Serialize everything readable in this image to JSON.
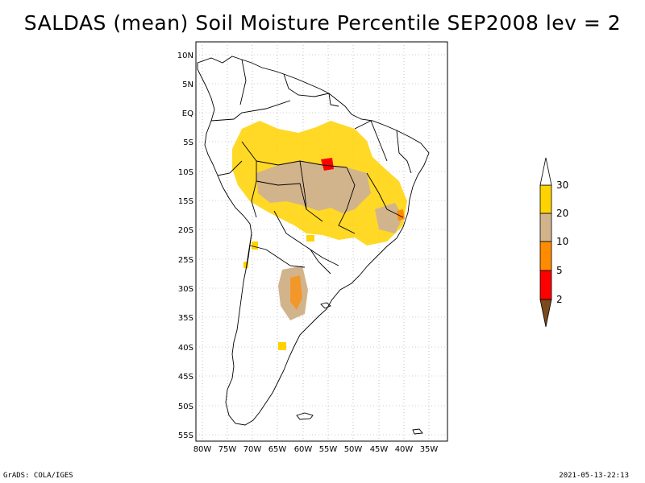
{
  "title": "SALDAS (mean) Soil Moisture Percentile SEP2008 lev = 2",
  "footer": {
    "left": "GrADS: COLA/IGES",
    "right": "2021-05-13-22:13"
  },
  "map": {
    "lat_labels": [
      "10N",
      "5N",
      "EQ",
      "5S",
      "10S",
      "15S",
      "20S",
      "25S",
      "30S",
      "35S",
      "40S",
      "45S",
      "50S",
      "55S"
    ],
    "lon_labels": [
      "80W",
      "75W",
      "70W",
      "65W",
      "60W",
      "55W",
      "50W",
      "45W",
      "40W",
      "35W"
    ]
  },
  "legend": {
    "labels": [
      "2",
      "5",
      "10",
      "20",
      "30"
    ],
    "colors": [
      "#7a4a1a",
      "#ff0000",
      "#ff8c00",
      "#d2b48c",
      "#ffd200",
      "#ffffff"
    ]
  }
}
